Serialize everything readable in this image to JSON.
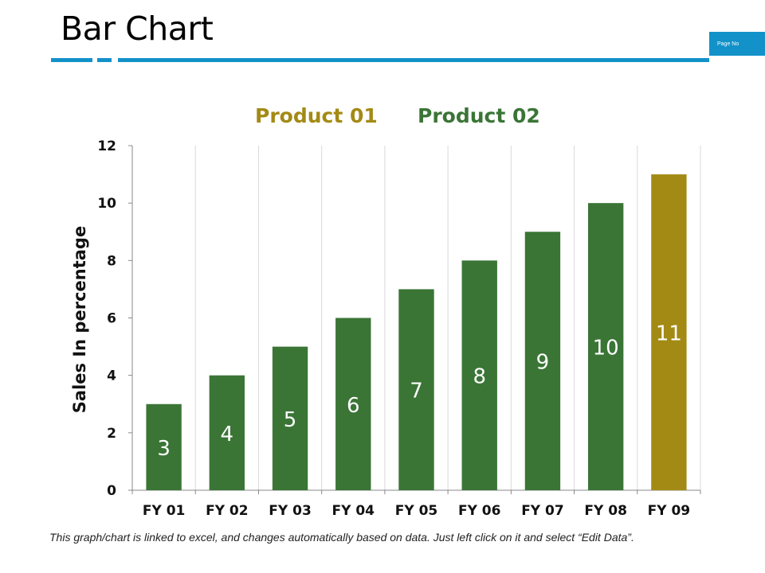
{
  "slide": {
    "title": "Bar Chart",
    "page_label": "Page No",
    "footnote": "This graph/chart is linked to excel, and changes automatically based on data. Just left click on it and select “Edit Data”."
  },
  "colors": {
    "accent": "#1292c9",
    "product_01": "#a38a14",
    "product_02": "#3a7536",
    "grid": "#d9d9d9"
  },
  "chart_data": {
    "type": "bar",
    "title": "",
    "xlabel": "",
    "ylabel": "Sales In percentage",
    "ylim": [
      0,
      12
    ],
    "yticks": [
      0,
      2,
      4,
      6,
      8,
      10,
      12
    ],
    "categories": [
      "FY 01",
      "FY 02",
      "FY 03",
      "FY 04",
      "FY 05",
      "FY 06",
      "FY 07",
      "FY 08",
      "FY 09"
    ],
    "series": [
      {
        "name": "Product 01",
        "color": "#a38a14",
        "values": [
          null,
          null,
          null,
          null,
          null,
          null,
          null,
          null,
          11
        ]
      },
      {
        "name": "Product 02",
        "color": "#3a7536",
        "values": [
          3,
          4,
          5,
          6,
          7,
          8,
          9,
          10,
          null
        ]
      }
    ],
    "legend_position": "top",
    "grid": "vertical",
    "data_labels": true
  }
}
